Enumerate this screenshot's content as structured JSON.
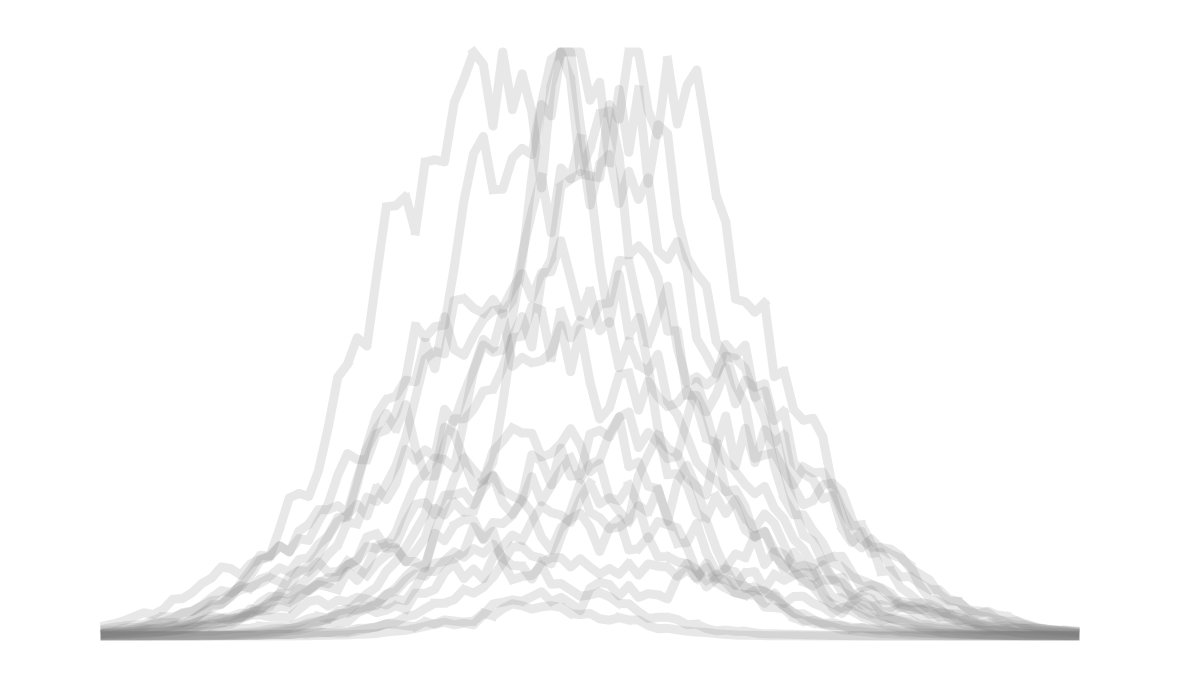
{
  "chart_data": {
    "type": "line",
    "title": "",
    "xlabel": "",
    "ylabel": "",
    "xlim": [
      0,
      100
    ],
    "ylim": [
      0,
      100
    ],
    "grid": false,
    "axes_visible": false,
    "legend": "none",
    "style": {
      "stroke_color": "#808080",
      "stroke_opacity": 0.18,
      "marker_shape": "square"
    },
    "series_count": 18,
    "series": [
      {
        "peak_x": 40.5,
        "peak_y": 100,
        "width": 12,
        "jitter": 16
      },
      {
        "peak_x": 52.0,
        "peak_y": 92,
        "width": 11,
        "jitter": 14
      },
      {
        "peak_x": 46.0,
        "peak_y": 80,
        "width": 13,
        "jitter": 12
      },
      {
        "peak_x": 56.0,
        "peak_y": 88,
        "width": 12,
        "jitter": 15
      },
      {
        "peak_x": 49.0,
        "peak_y": 78,
        "width": 14,
        "jitter": 10
      },
      {
        "peak_x": 44.0,
        "peak_y": 63,
        "width": 15,
        "jitter": 9
      },
      {
        "peak_x": 53.0,
        "peak_y": 57,
        "width": 16,
        "jitter": 9
      },
      {
        "peak_x": 47.0,
        "peak_y": 49,
        "width": 17,
        "jitter": 8
      },
      {
        "peak_x": 58.0,
        "peak_y": 42,
        "width": 15,
        "jitter": 8
      },
      {
        "peak_x": 38.0,
        "peak_y": 36,
        "width": 16,
        "jitter": 7
      },
      {
        "peak_x": 62.0,
        "peak_y": 33,
        "width": 14,
        "jitter": 7
      },
      {
        "peak_x": 50.0,
        "peak_y": 28,
        "width": 18,
        "jitter": 6
      },
      {
        "peak_x": 42.0,
        "peak_y": 23,
        "width": 15,
        "jitter": 5
      },
      {
        "peak_x": 55.0,
        "peak_y": 19,
        "width": 17,
        "jitter": 5
      },
      {
        "peak_x": 33.0,
        "peak_y": 17,
        "width": 13,
        "jitter": 4
      },
      {
        "peak_x": 48.0,
        "peak_y": 13,
        "width": 19,
        "jitter": 3
      },
      {
        "peak_x": 60.0,
        "peak_y": 10,
        "width": 16,
        "jitter": 3
      },
      {
        "peak_x": 45.0,
        "peak_y": 5,
        "width": 8,
        "jitter": 1
      }
    ]
  }
}
